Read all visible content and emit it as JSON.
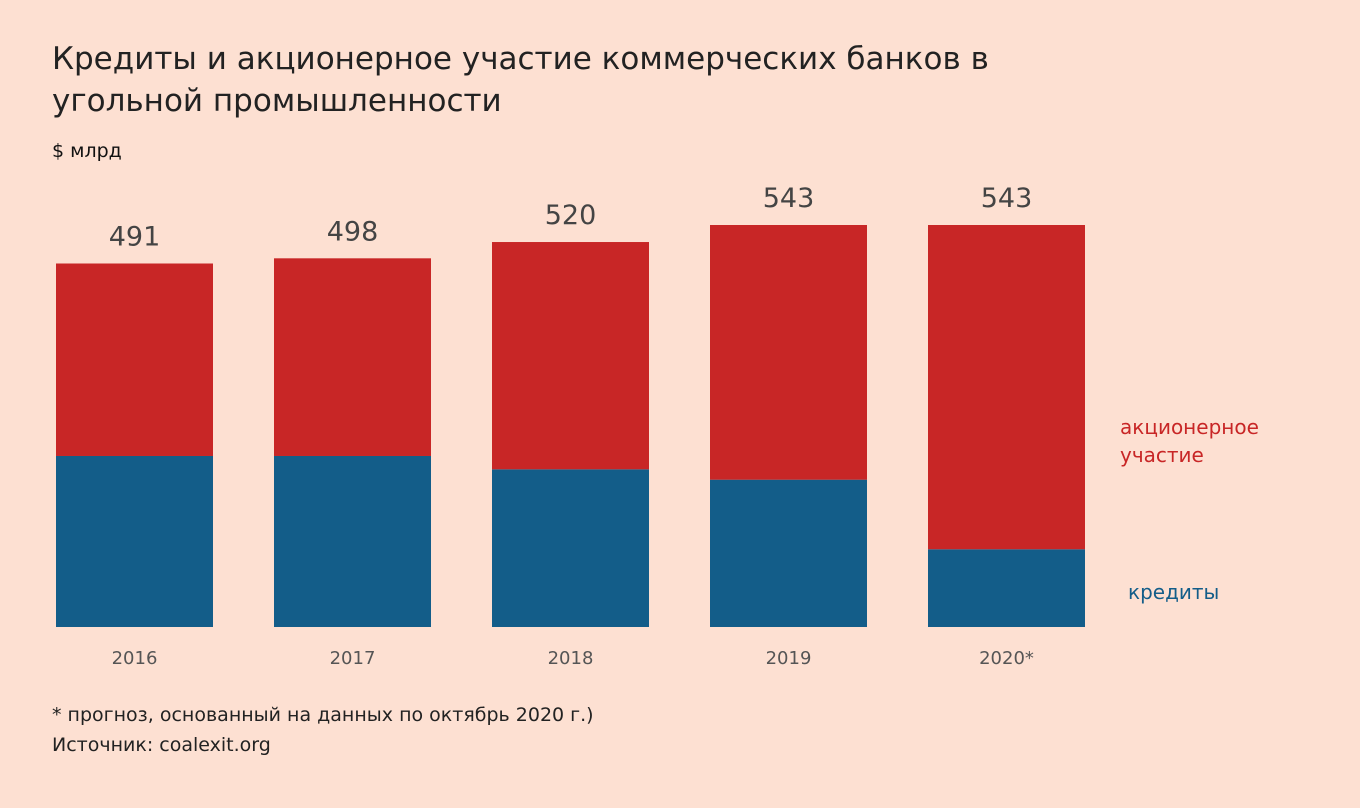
{
  "chart_data": {
    "type": "bar",
    "stacked": true,
    "title": "Кредиты и акционерное участие коммерческих банков в угольной промышленности",
    "ylabel": "$ млрд",
    "categories": [
      "2016",
      "2017",
      "2018",
      "2019",
      "2020*"
    ],
    "totals": [
      491,
      498,
      520,
      543,
      543
    ],
    "series": [
      {
        "name": "кредиты",
        "color": "#135d89",
        "values": [
          231,
          231,
          213,
          199,
          105
        ]
      },
      {
        "name": "акционерное участие",
        "color": "#c82626",
        "values": [
          260,
          267,
          307,
          344,
          438
        ]
      }
    ],
    "ylim": [
      0,
      543
    ],
    "grid": false,
    "legend": "right, inline"
  },
  "footnote": "* прогноз, основанный на данных по октябрь 2020 г.)",
  "source": "Источник: coalexit.org"
}
